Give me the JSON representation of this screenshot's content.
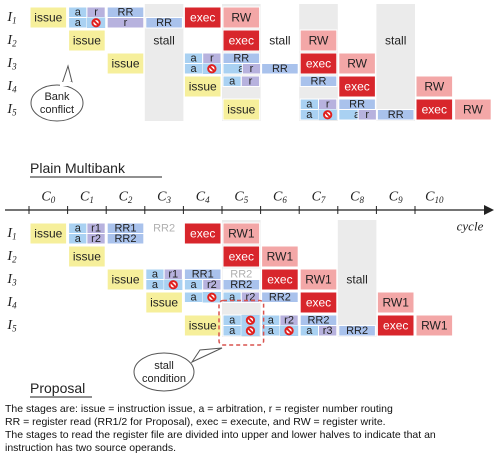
{
  "labels": {
    "plain_title": "Plain Multibank",
    "proposal_title": "Proposal",
    "cycle_axis": "cycle",
    "bank_conflict": "Bank conflict",
    "stall_condition": "stall condition",
    "stall": "stall",
    "conflict_icon": "prohibition-icon"
  },
  "cycles": [
    "C0",
    "C1",
    "C2",
    "C3",
    "C4",
    "C5",
    "C6",
    "C7",
    "C8",
    "C9",
    "C10"
  ],
  "instructions": [
    "I1",
    "I2",
    "I3",
    "I4",
    "I5"
  ],
  "colors": {
    "issue": "#f6ef9b",
    "a": "#a9d1f2",
    "r": "#b7b2de",
    "rr": "#a9c2ec",
    "exec": "#d8262c",
    "rw": "#f3a7a7",
    "shade": "#ebebeb",
    "conflict": "#e0201e"
  },
  "plain": {
    "shaded_cycles": [
      3,
      5,
      7,
      9
    ],
    "rows": [
      {
        "instr": "I1",
        "cells": [
          {
            "c": 0,
            "t": "issue",
            "k": "issue"
          },
          {
            "c": 1,
            "h": "top",
            "sub": [
              {
                "t": "a",
                "k": "a"
              },
              {
                "t": "r",
                "k": "r"
              }
            ]
          },
          {
            "c": 2,
            "h": "top",
            "t": "RR",
            "k": "rr"
          },
          {
            "c": 1,
            "h": "bottom",
            "sub": [
              {
                "t": "a",
                "k": "a"
              },
              {
                "t": "x",
                "k": "conflict"
              }
            ]
          },
          {
            "c": 2,
            "h": "bottom",
            "t": "r",
            "k": "r"
          },
          {
            "c": 3,
            "h": "bottom",
            "t": "RR",
            "k": "rr"
          },
          {
            "c": 4,
            "t": "exec",
            "k": "exec"
          },
          {
            "c": 5,
            "t": "RW",
            "k": "rw"
          }
        ]
      },
      {
        "instr": "I2",
        "cells": [
          {
            "c": 1,
            "t": "issue",
            "k": "issue"
          },
          {
            "c": 3,
            "t": "stall",
            "k": "text"
          },
          {
            "c": 5,
            "t": "exec",
            "k": "exec"
          },
          {
            "c": 6,
            "t": "stall",
            "k": "text"
          },
          {
            "c": 7,
            "t": "RW",
            "k": "rw"
          },
          {
            "c": 9,
            "t": "stall",
            "k": "text"
          }
        ]
      },
      {
        "instr": "I3",
        "cells": [
          {
            "c": 2,
            "t": "issue",
            "k": "issue"
          },
          {
            "c": 4,
            "h": "top",
            "sub": [
              {
                "t": "a",
                "k": "a"
              },
              {
                "t": "r",
                "k": "r"
              }
            ]
          },
          {
            "c": 5,
            "h": "top",
            "t": "RR",
            "k": "rr"
          },
          {
            "c": 4,
            "h": "bottom",
            "sub": [
              {
                "t": "a",
                "k": "a"
              },
              {
                "t": "x",
                "k": "conflict"
              }
            ]
          },
          {
            "c": 5,
            "h": "bottom",
            "t": "a",
            "k": "a"
          },
          {
            "c": 5.5,
            "h": "bottom",
            "t": "r",
            "k": "r"
          },
          {
            "c": 6,
            "h": "bottom",
            "t": "RR",
            "k": "rr"
          },
          {
            "c": 7,
            "t": "exec",
            "k": "exec"
          },
          {
            "c": 8,
            "t": "RW",
            "k": "rw"
          }
        ]
      },
      {
        "instr": "I4",
        "cells": [
          {
            "c": 4,
            "t": "issue",
            "k": "issue"
          },
          {
            "c": 5,
            "h": "top",
            "sub": [
              {
                "t": "a",
                "k": "a"
              },
              {
                "t": "r",
                "k": "r"
              }
            ]
          },
          {
            "c": 7,
            "h": "top",
            "t": "RR",
            "k": "rr"
          },
          {
            "c": 8,
            "t": "exec",
            "k": "exec"
          },
          {
            "c": 10,
            "t": "RW",
            "k": "rw"
          }
        ]
      },
      {
        "instr": "I5",
        "cells": [
          {
            "c": 5,
            "t": "issue",
            "k": "issue"
          },
          {
            "c": 7,
            "h": "top",
            "sub": [
              {
                "t": "a",
                "k": "a"
              },
              {
                "t": "r",
                "k": "r"
              }
            ]
          },
          {
            "c": 8,
            "h": "top",
            "t": "RR",
            "k": "rr"
          },
          {
            "c": 7,
            "h": "bottom",
            "sub": [
              {
                "t": "a",
                "k": "a"
              },
              {
                "t": "x",
                "k": "conflict"
              }
            ]
          },
          {
            "c": 8,
            "h": "bottom",
            "t": "a",
            "k": "a"
          },
          {
            "c": 8.5,
            "h": "bottom",
            "t": "r",
            "k": "r"
          },
          {
            "c": 9,
            "h": "bottom",
            "t": "RR",
            "k": "rr"
          },
          {
            "c": 10,
            "t": "exec",
            "k": "exec"
          },
          {
            "c": 11,
            "t": "RW",
            "k": "rw"
          }
        ]
      }
    ]
  },
  "proposal": {
    "shaded_cycles": [
      5,
      8
    ],
    "rows": [
      {
        "instr": "I1",
        "cells": [
          {
            "c": 0,
            "t": "issue",
            "k": "issue"
          },
          {
            "c": 1,
            "h": "top",
            "sub": [
              {
                "t": "a",
                "k": "a"
              },
              {
                "t": "r1",
                "k": "r"
              }
            ]
          },
          {
            "c": 2,
            "h": "top",
            "t": "RR1",
            "k": "rr"
          },
          {
            "c": 3,
            "h": "top",
            "t": "RR2",
            "k": "ghost"
          },
          {
            "c": 1,
            "h": "bottom",
            "sub": [
              {
                "t": "a",
                "k": "a"
              },
              {
                "t": "r2",
                "k": "r"
              }
            ]
          },
          {
            "c": 2,
            "h": "bottom",
            "t": "RR2",
            "k": "rr"
          },
          {
            "c": 4,
            "t": "exec",
            "k": "exec"
          },
          {
            "c": 5,
            "t": "RW1",
            "k": "rw"
          }
        ]
      },
      {
        "instr": "I2",
        "cells": [
          {
            "c": 1,
            "t": "issue",
            "k": "issue"
          },
          {
            "c": 5,
            "t": "exec",
            "k": "exec"
          },
          {
            "c": 6,
            "t": "RW1",
            "k": "rw"
          }
        ]
      },
      {
        "instr": "I3",
        "cells": [
          {
            "c": 2,
            "t": "issue",
            "k": "issue"
          },
          {
            "c": 3,
            "h": "top",
            "sub": [
              {
                "t": "a",
                "k": "a"
              },
              {
                "t": "r1",
                "k": "r"
              }
            ]
          },
          {
            "c": 4,
            "h": "top",
            "t": "RR1",
            "k": "rr"
          },
          {
            "c": 5,
            "h": "top",
            "t": "RR2",
            "k": "ghost"
          },
          {
            "c": 3,
            "h": "bottom",
            "sub": [
              {
                "t": "a",
                "k": "a"
              },
              {
                "t": "x",
                "k": "conflict"
              }
            ]
          },
          {
            "c": 4,
            "h": "bottom",
            "sub": [
              {
                "t": "a",
                "k": "a"
              },
              {
                "t": "r2",
                "k": "r"
              }
            ]
          },
          {
            "c": 5,
            "h": "bottom",
            "t": "RR2",
            "k": "rr"
          },
          {
            "c": 6,
            "t": "exec",
            "k": "exec"
          },
          {
            "c": 7,
            "t": "RW1",
            "k": "rw"
          },
          {
            "c": 8,
            "t": "stall",
            "k": "text"
          }
        ]
      },
      {
        "instr": "I4",
        "cells": [
          {
            "c": 3,
            "t": "issue",
            "k": "issue"
          },
          {
            "c": 4,
            "h": "top",
            "sub": [
              {
                "t": "a",
                "k": "a"
              },
              {
                "t": "x",
                "k": "conflict"
              }
            ]
          },
          {
            "c": 5,
            "h": "top",
            "sub": [
              {
                "t": "a",
                "k": "a"
              },
              {
                "t": "r2",
                "k": "r"
              }
            ]
          },
          {
            "c": 6,
            "h": "top",
            "t": "RR2",
            "k": "rr"
          },
          {
            "c": 7,
            "t": "exec",
            "k": "exec"
          },
          {
            "c": 9,
            "t": "RW1",
            "k": "rw"
          }
        ]
      },
      {
        "instr": "I5",
        "cells": [
          {
            "c": 4,
            "t": "issue",
            "k": "issue"
          },
          {
            "c": 5,
            "h": "top",
            "sub": [
              {
                "t": "a",
                "k": "a"
              },
              {
                "t": "x",
                "k": "conflict"
              }
            ]
          },
          {
            "c": 6,
            "h": "top",
            "sub": [
              {
                "t": "a",
                "k": "a"
              },
              {
                "t": "r2",
                "k": "r"
              }
            ]
          },
          {
            "c": 7,
            "h": "top",
            "t": "RR2",
            "k": "rr"
          },
          {
            "c": 5,
            "h": "bottom",
            "sub": [
              {
                "t": "a",
                "k": "a"
              },
              {
                "t": "x",
                "k": "conflict"
              }
            ]
          },
          {
            "c": 6,
            "h": "bottom",
            "sub": [
              {
                "t": "a",
                "k": "a"
              },
              {
                "t": "x",
                "k": "conflict"
              }
            ]
          },
          {
            "c": 7,
            "h": "bottom",
            "sub": [
              {
                "t": "a",
                "k": "a"
              },
              {
                "t": "r3",
                "k": "r"
              }
            ]
          },
          {
            "c": 8,
            "h": "bottom",
            "t": "RR2",
            "k": "rr"
          },
          {
            "c": 9,
            "t": "exec",
            "k": "exec"
          },
          {
            "c": 10,
            "t": "RW1",
            "k": "rw"
          }
        ]
      }
    ]
  },
  "caption": {
    "line1": "The stages are: issue = instruction issue, a = arbitration, r = register number routing",
    "line2": "RR = register read (RR1/2 for Proposal), exec = execute, and RW = register write.",
    "line3": "The stages to read the register file are divided into upper and lower halves to indicate that an",
    "line4": "instruction has two source operands."
  }
}
